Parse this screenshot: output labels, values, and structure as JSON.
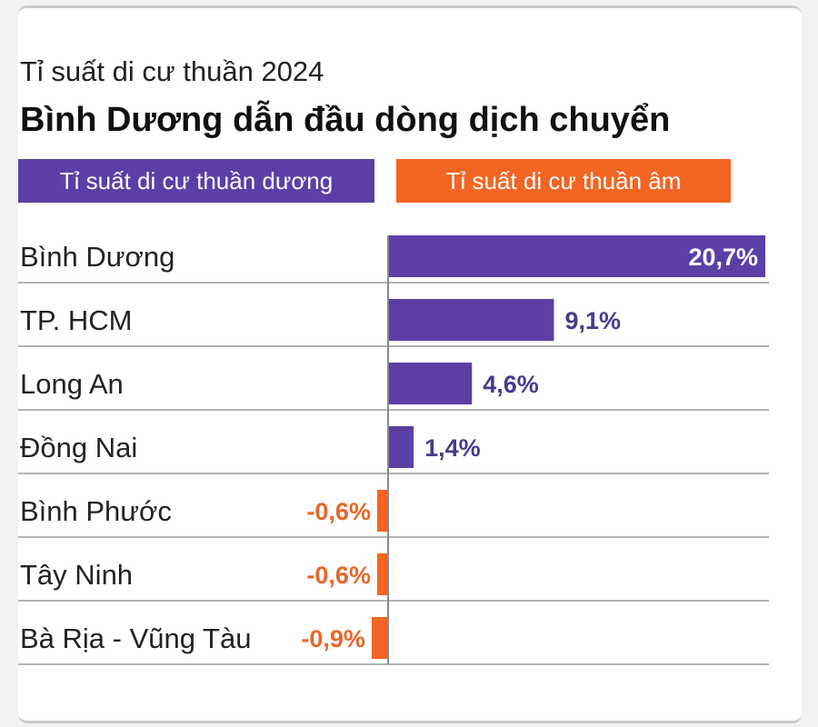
{
  "header": {
    "subtitle": "Tỉ suất di cư thuần 2024",
    "title": "Bình Dương dẫn đầu dòng dịch chuyển"
  },
  "legend": {
    "positive_label": "Tỉ suất di cư thuần dương",
    "negative_label": "Tỉ suất di cư thuần âm"
  },
  "colors": {
    "positive": "#5b3fa6",
    "negative": "#f26522",
    "label_positive": "#4b3a8c",
    "label_negative": "#e8662a",
    "gridline": "#9a9a9a",
    "axis": "#8a8a8a",
    "text": "#222222"
  },
  "chart_data": {
    "type": "bar",
    "orientation": "horizontal",
    "categories": [
      "Bình Dương",
      "TP. HCM",
      "Long An",
      "Đồng Nai",
      "Bình Phước",
      "Tây Ninh",
      "Bà Rịa - Vũng Tàu"
    ],
    "values": [
      20.7,
      9.1,
      4.6,
      1.4,
      -0.6,
      -0.6,
      -0.9
    ],
    "value_labels": [
      "20,7%",
      "9,1%",
      "4,6%",
      "1,4%",
      "-0,6%",
      "-0,6%",
      "-0,9%"
    ],
    "unit": "%",
    "grid": false,
    "legend_position": "top"
  }
}
